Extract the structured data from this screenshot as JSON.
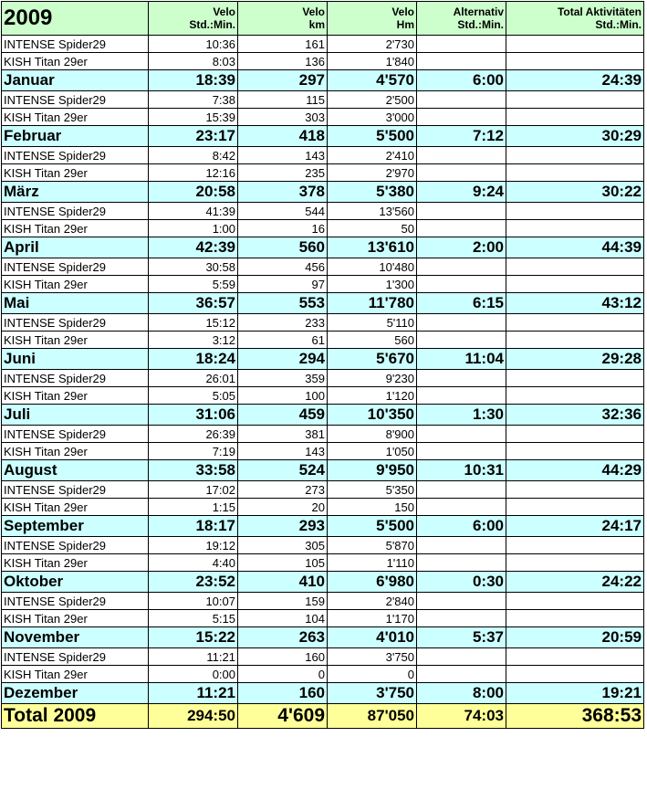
{
  "header": {
    "year": "2009",
    "col1": [
      "Velo",
      "Std.:Min."
    ],
    "col2": [
      "Velo",
      "km"
    ],
    "col3": [
      "Velo",
      "Hm"
    ],
    "col4": [
      "Alternativ",
      "Std.:Min."
    ],
    "col5": [
      "Total Aktivitäten",
      "Std.:Min."
    ]
  },
  "rows": [
    {
      "type": "sub",
      "label": "INTENSE Spider29",
      "time": "10:36",
      "km": "161",
      "hm": "2'730",
      "alt": "",
      "total": ""
    },
    {
      "type": "sub",
      "label": "KISH Titan 29er",
      "time": "8:03",
      "km": "136",
      "hm": "1'840",
      "alt": "",
      "total": ""
    },
    {
      "type": "month",
      "label": "Januar",
      "time": "18:39",
      "km": "297",
      "hm": "4'570",
      "alt": "6:00",
      "total": "24:39"
    },
    {
      "type": "sub",
      "label": "INTENSE Spider29",
      "time": "7:38",
      "km": "115",
      "hm": "2'500",
      "alt": "",
      "total": ""
    },
    {
      "type": "sub",
      "label": "KISH Titan 29er",
      "time": "15:39",
      "km": "303",
      "hm": "3'000",
      "alt": "",
      "total": ""
    },
    {
      "type": "month",
      "label": "Februar",
      "time": "23:17",
      "km": "418",
      "hm": "5'500",
      "alt": "7:12",
      "total": "30:29"
    },
    {
      "type": "sub",
      "label": "INTENSE Spider29",
      "time": "8:42",
      "km": "143",
      "hm": "2'410",
      "alt": "",
      "total": ""
    },
    {
      "type": "sub",
      "label": "KISH Titan 29er",
      "time": "12:16",
      "km": "235",
      "hm": "2'970",
      "alt": "",
      "total": ""
    },
    {
      "type": "month",
      "label": "März",
      "time": "20:58",
      "km": "378",
      "hm": "5'380",
      "alt": "9:24",
      "total": "30:22"
    },
    {
      "type": "sub",
      "label": "INTENSE Spider29",
      "time": "41:39",
      "km": "544",
      "hm": "13'560",
      "alt": "",
      "total": ""
    },
    {
      "type": "sub",
      "label": "KISH Titan 29er",
      "time": "1:00",
      "km": "16",
      "hm": "50",
      "alt": "",
      "total": ""
    },
    {
      "type": "month",
      "label": "April",
      "time": "42:39",
      "km": "560",
      "hm": "13'610",
      "alt": "2:00",
      "total": "44:39"
    },
    {
      "type": "sub",
      "label": "INTENSE Spider29",
      "time": "30:58",
      "km": "456",
      "hm": "10'480",
      "alt": "",
      "total": ""
    },
    {
      "type": "sub",
      "label": "KISH Titan 29er",
      "time": "5:59",
      "km": "97",
      "hm": "1'300",
      "alt": "",
      "total": ""
    },
    {
      "type": "month",
      "label": "Mai",
      "time": "36:57",
      "km": "553",
      "hm": "11'780",
      "alt": "6:15",
      "total": "43:12"
    },
    {
      "type": "sub",
      "label": "INTENSE Spider29",
      "time": "15:12",
      "km": "233",
      "hm": "5'110",
      "alt": "",
      "total": ""
    },
    {
      "type": "sub",
      "label": "KISH Titan 29er",
      "time": "3:12",
      "km": "61",
      "hm": "560",
      "alt": "",
      "total": ""
    },
    {
      "type": "month",
      "label": "Juni",
      "time": "18:24",
      "km": "294",
      "hm": "5'670",
      "alt": "11:04",
      "total": "29:28"
    },
    {
      "type": "sub",
      "label": "INTENSE Spider29",
      "time": "26:01",
      "km": "359",
      "hm": "9'230",
      "alt": "",
      "total": ""
    },
    {
      "type": "sub",
      "label": "KISH Titan 29er",
      "time": "5:05",
      "km": "100",
      "hm": "1'120",
      "alt": "",
      "total": ""
    },
    {
      "type": "month",
      "label": "Juli",
      "time": "31:06",
      "km": "459",
      "hm": "10'350",
      "alt": "1:30",
      "total": "32:36"
    },
    {
      "type": "sub",
      "label": "INTENSE Spider29",
      "time": "26:39",
      "km": "381",
      "hm": "8'900",
      "alt": "",
      "total": ""
    },
    {
      "type": "sub",
      "label": "KISH Titan 29er",
      "time": "7:19",
      "km": "143",
      "hm": "1'050",
      "alt": "",
      "total": ""
    },
    {
      "type": "month",
      "label": "August",
      "time": "33:58",
      "km": "524",
      "hm": "9'950",
      "alt": "10:31",
      "total": "44:29"
    },
    {
      "type": "sub",
      "label": "INTENSE Spider29",
      "time": "17:02",
      "km": "273",
      "hm": "5'350",
      "alt": "",
      "total": ""
    },
    {
      "type": "sub",
      "label": "KISH Titan 29er",
      "time": "1:15",
      "km": "20",
      "hm": "150",
      "alt": "",
      "total": ""
    },
    {
      "type": "month",
      "label": "September",
      "time": "18:17",
      "km": "293",
      "hm": "5'500",
      "alt": "6:00",
      "total": "24:17"
    },
    {
      "type": "sub",
      "label": "INTENSE Spider29",
      "time": "19:12",
      "km": "305",
      "hm": "5'870",
      "alt": "",
      "total": ""
    },
    {
      "type": "sub",
      "label": "KISH Titan 29er",
      "time": "4:40",
      "km": "105",
      "hm": "1'110",
      "alt": "",
      "total": ""
    },
    {
      "type": "month",
      "label": "Oktober",
      "time": "23:52",
      "km": "410",
      "hm": "6'980",
      "alt": "0:30",
      "total": "24:22"
    },
    {
      "type": "sub",
      "label": "INTENSE Spider29",
      "time": "10:07",
      "km": "159",
      "hm": "2'840",
      "alt": "",
      "total": ""
    },
    {
      "type": "sub",
      "label": "KISH Titan 29er",
      "time": "5:15",
      "km": "104",
      "hm": "1'170",
      "alt": "",
      "total": ""
    },
    {
      "type": "month",
      "label": "November",
      "time": "15:22",
      "km": "263",
      "hm": "4'010",
      "alt": "5:37",
      "total": "20:59"
    },
    {
      "type": "sub",
      "label": "INTENSE Spider29",
      "time": "11:21",
      "km": "160",
      "hm": "3'750",
      "alt": "",
      "total": ""
    },
    {
      "type": "sub",
      "label": "KISH Titan 29er",
      "time": "0:00",
      "km": "0",
      "hm": "0",
      "alt": "",
      "total": ""
    },
    {
      "type": "month",
      "label": "Dezember",
      "time": "11:21",
      "km": "160",
      "hm": "3'750",
      "alt": "8:00",
      "total": "19:21"
    }
  ],
  "total": {
    "label": "Total 2009",
    "time": "294:50",
    "km": "4'609",
    "hm": "87'050",
    "alt": "74:03",
    "total": "368:53"
  }
}
